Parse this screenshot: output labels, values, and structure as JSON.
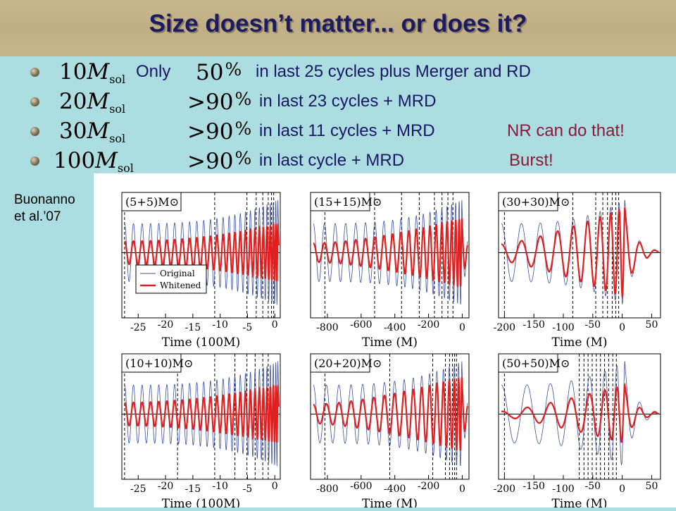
{
  "slide": {
    "title": "Size doesn’t matter... or does it?",
    "side_note_line1": "Buonanno",
    "side_note_line2": "et al.’07"
  },
  "bullets": [
    {
      "mass": "10",
      "mass_unit": "M",
      "mass_sub": "sol",
      "prefix": "Only",
      "percent": "50",
      "percent_op": "",
      "text": "in last 25 cycles plus Merger and RD",
      "note": ""
    },
    {
      "mass": "20",
      "mass_unit": "M",
      "mass_sub": "sol",
      "prefix": "",
      "percent": "90",
      "percent_op": ">",
      "text": "in last 23 cycles + MRD",
      "note": ""
    },
    {
      "mass": "30",
      "mass_unit": "M",
      "mass_sub": "sol",
      "prefix": "",
      "percent": "90",
      "percent_op": ">",
      "text": "in last 11 cycles + MRD",
      "note": "NR can do that!"
    },
    {
      "mass": "100",
      "mass_unit": "M",
      "mass_sub": "sol",
      "prefix": "",
      "percent": "90",
      "percent_op": ">",
      "text": "in last cycle + MRD",
      "note": "Burst!"
    }
  ],
  "colors": {
    "original": "#3a4f9c",
    "whitened": "#e02020",
    "text": "#171766",
    "accent": "#8a1a3a"
  },
  "chart_data": [
    {
      "type": "line",
      "label": "(5+5)M⊙",
      "xlabel": "Time (100M)",
      "xlim": [
        -28,
        1
      ],
      "ticks": [
        -25,
        -20,
        -15,
        -10,
        -5,
        0
      ],
      "legend": {
        "original": "Original",
        "whitened": "Whitened"
      },
      "cycles_markers": [
        -27.5,
        -11,
        -5.1,
        -3.4,
        -2.2,
        -1.2,
        -0.6,
        -0.2
      ],
      "series": [
        {
          "name": "Original"
        },
        {
          "name": "Whitened"
        }
      ]
    },
    {
      "type": "line",
      "label": "(15+15)M⊙",
      "xlabel": "Time (M)",
      "xlim": [
        -900,
        40
      ],
      "ticks": [
        -800,
        -600,
        -400,
        -200,
        0
      ],
      "cycles_markers": [
        -815,
        -520,
        -360,
        -255,
        -165,
        -120,
        -85,
        -55
      ],
      "series": [
        {
          "name": "Original"
        },
        {
          "name": "Whitened"
        }
      ]
    },
    {
      "type": "line",
      "label": "(30+30)M⊙",
      "xlabel": "Time (M)",
      "xlim": [
        -210,
        65
      ],
      "ticks": [
        -200,
        -150,
        -100,
        -50,
        0,
        50
      ],
      "cycles_markers": [
        -200,
        -84,
        -45,
        -33,
        -25,
        -17,
        -11,
        -6
      ],
      "series": [
        {
          "name": "Original"
        },
        {
          "name": "Whitened"
        }
      ]
    },
    {
      "type": "line",
      "label": "(10+10)M⊙",
      "xlabel": "Time (100M)",
      "xlim": [
        -28,
        1
      ],
      "ticks": [
        -25,
        -20,
        -15,
        -10,
        -5,
        0
      ],
      "cycles_markers": [
        -27.5,
        -17.8,
        -11,
        -7.3,
        -5.1,
        -3.6,
        -2.2,
        -1.2
      ],
      "series": [
        {
          "name": "Original"
        },
        {
          "name": "Whitened"
        }
      ]
    },
    {
      "type": "line",
      "label": "(20+20)M⊙",
      "xlabel": "Time (M)",
      "xlim": [
        -900,
        40
      ],
      "ticks": [
        -800,
        -600,
        -400,
        -200,
        0
      ],
      "cycles_markers": [
        -815,
        -430,
        -175,
        -100,
        -75,
        -58,
        -45,
        -34
      ],
      "series": [
        {
          "name": "Original"
        },
        {
          "name": "Whitened"
        }
      ]
    },
    {
      "type": "line",
      "label": "(50+50)M⊙",
      "xlabel": "Time (M)",
      "xlim": [
        -210,
        65
      ],
      "ticks": [
        -200,
        -150,
        -100,
        -50,
        0,
        50
      ],
      "cycles_markers": [
        -200,
        -73,
        -65,
        -58,
        -51,
        -44,
        -37,
        -30,
        -23,
        -16,
        -10
      ],
      "series": [
        {
          "name": "Original"
        },
        {
          "name": "Whitened"
        }
      ]
    }
  ]
}
